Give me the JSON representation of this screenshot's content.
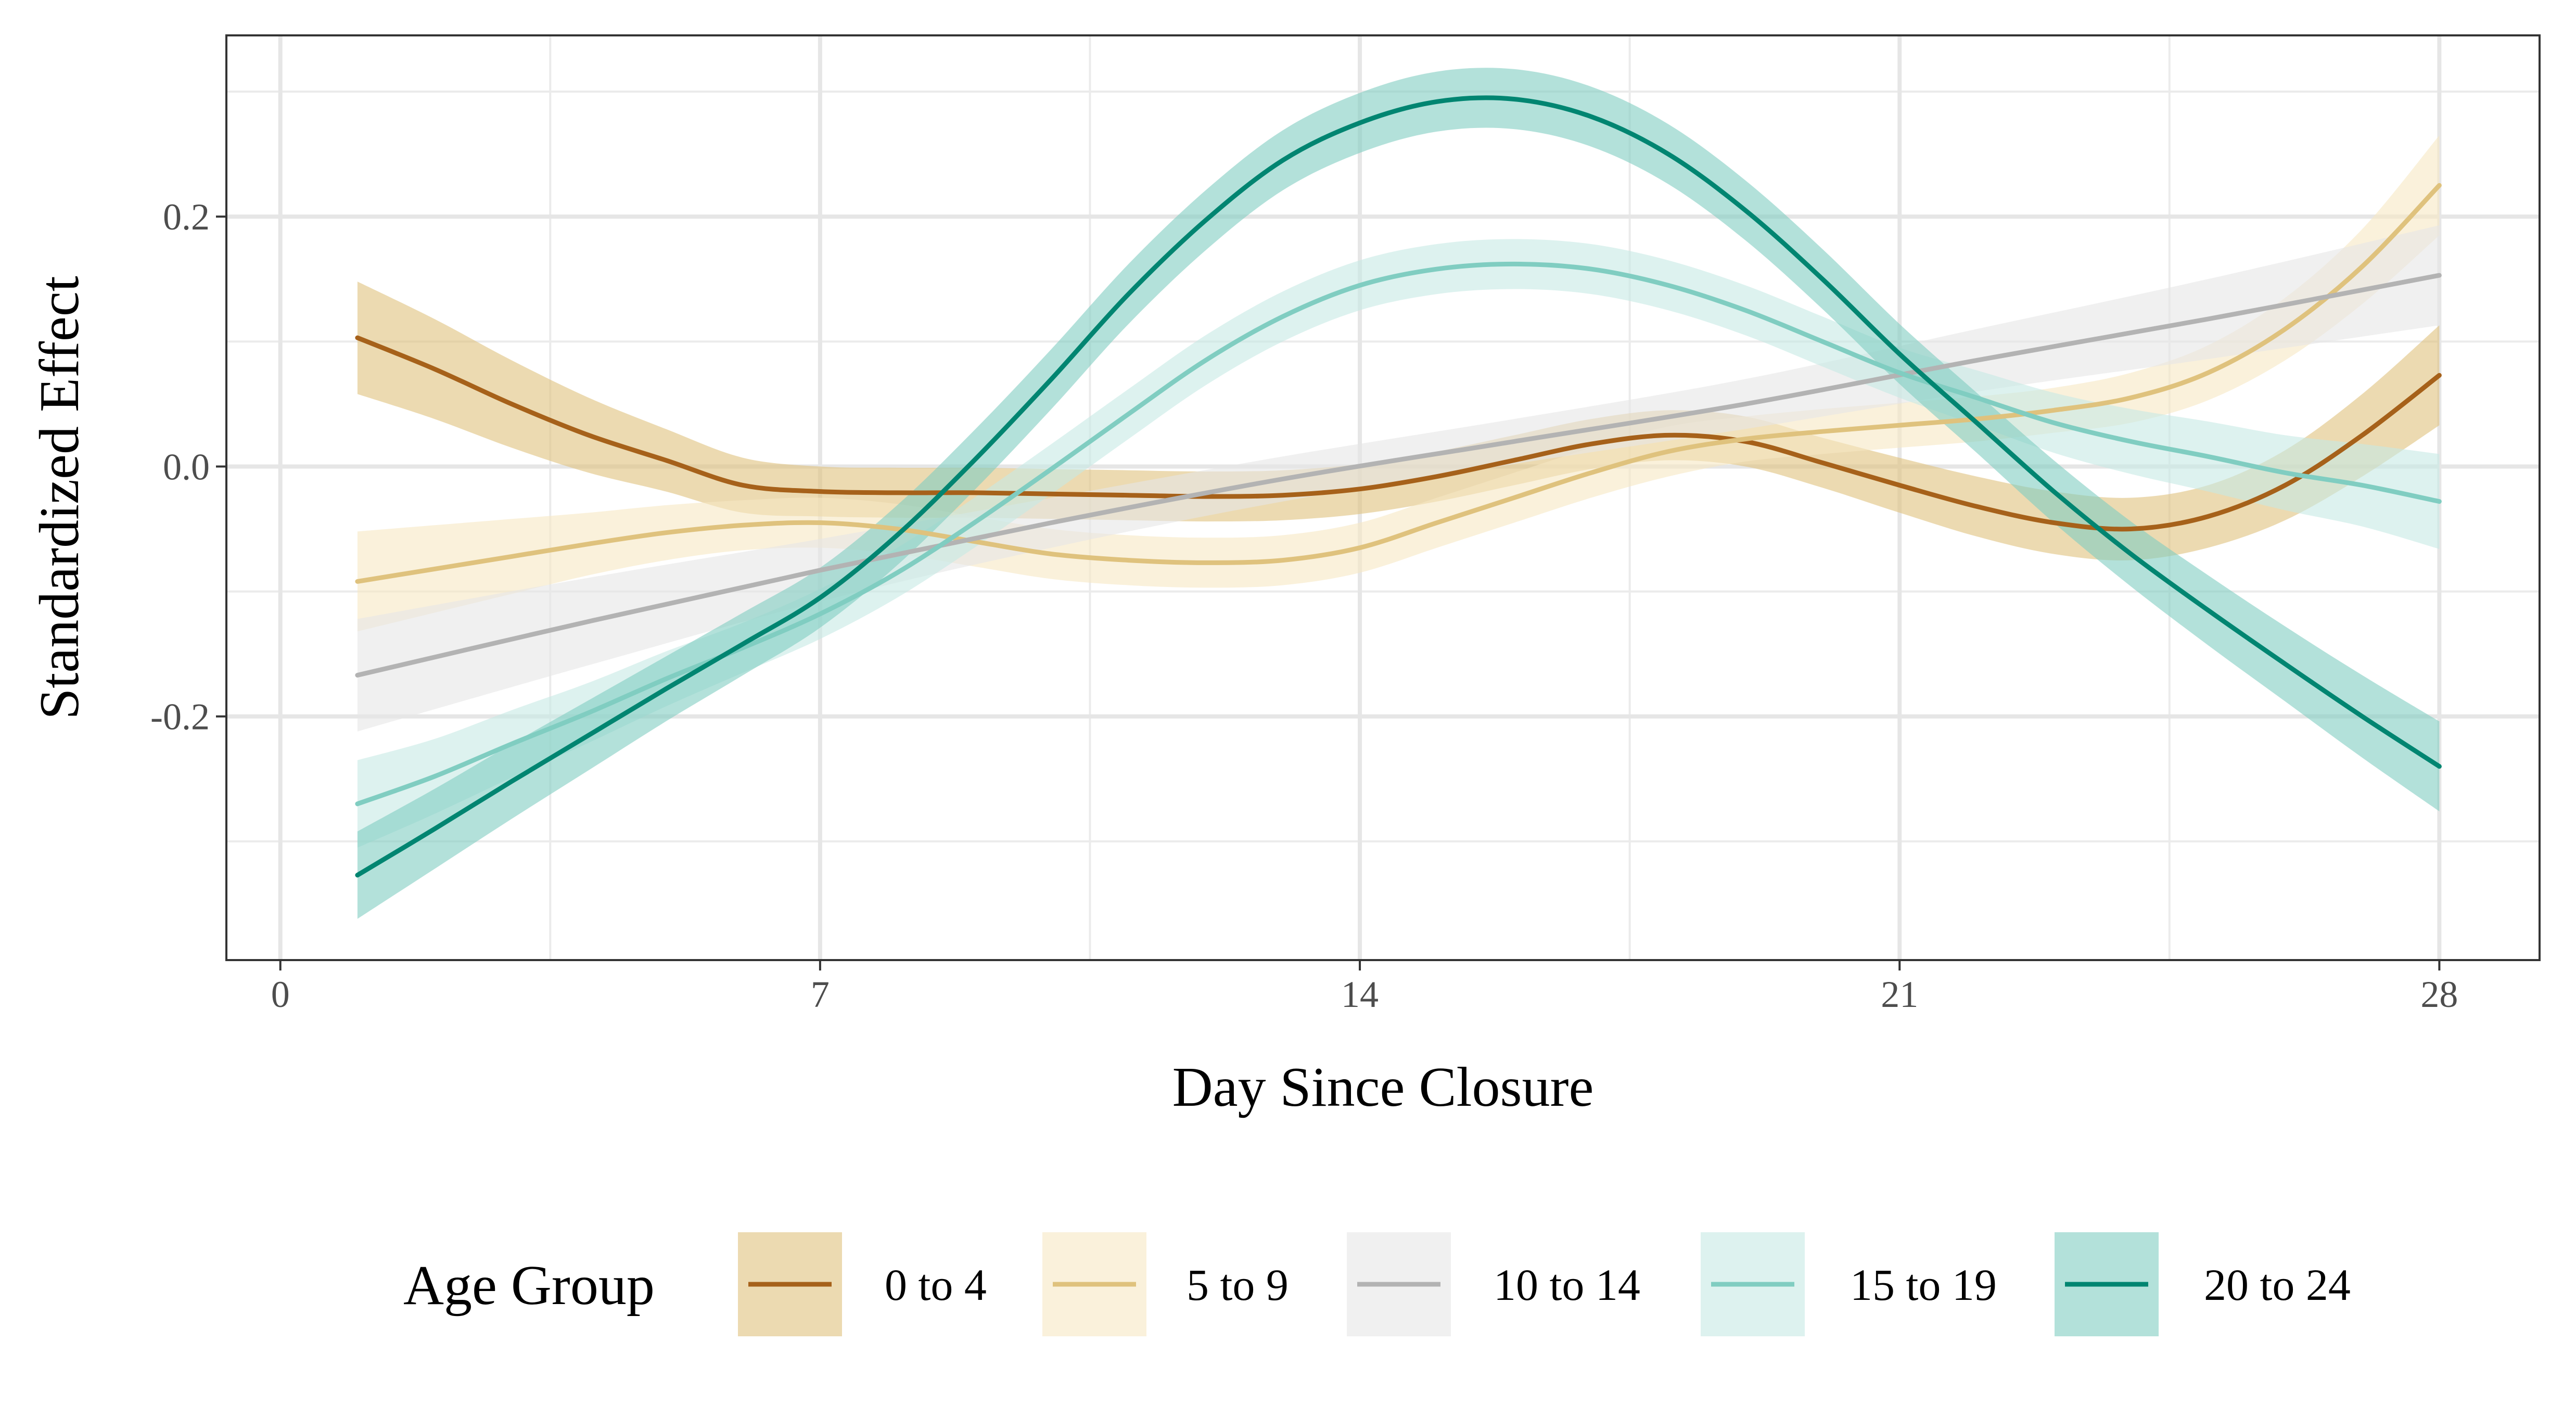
{
  "chart_data": {
    "type": "line",
    "xlabel": "Day Since Closure",
    "ylabel": "Standardized Effect",
    "xlim": [
      -0.7,
      29.3
    ],
    "ylim": [
      -0.395,
      0.345
    ],
    "x_ticks": [
      0,
      7,
      14,
      21,
      28
    ],
    "x_tick_labels": [
      "0",
      "7",
      "14",
      "21",
      "28"
    ],
    "x_minor_ticks": [
      3.5,
      10.5,
      17.5,
      24.5
    ],
    "y_ticks": [
      -0.2,
      0.0,
      0.2
    ],
    "y_tick_labels": [
      "-0.2",
      "0.0",
      "0.2"
    ],
    "y_minor_ticks": [
      -0.3,
      -0.1,
      0.1,
      0.3
    ],
    "grid": true,
    "legend": {
      "title": "Age Group",
      "position": "bottom"
    },
    "series": [
      {
        "name": "0 to 4",
        "color": "#A6611A",
        "fill": "#DFC27D",
        "points": [
          [
            1,
            0.103
          ],
          [
            2,
            0.078
          ],
          [
            3,
            0.05
          ],
          [
            4,
            0.025
          ],
          [
            5,
            0.005
          ],
          [
            6,
            -0.015
          ],
          [
            7,
            -0.02
          ],
          [
            8,
            -0.021
          ],
          [
            9,
            -0.021
          ],
          [
            10,
            -0.022
          ],
          [
            11,
            -0.023
          ],
          [
            12,
            -0.024
          ],
          [
            13,
            -0.023
          ],
          [
            14,
            -0.018
          ],
          [
            15,
            -0.008
          ],
          [
            16,
            0.005
          ],
          [
            17,
            0.018
          ],
          [
            18,
            0.025
          ],
          [
            19,
            0.02
          ],
          [
            20,
            0.003
          ],
          [
            21,
            -0.015
          ],
          [
            22,
            -0.032
          ],
          [
            23,
            -0.045
          ],
          [
            24,
            -0.05
          ],
          [
            25,
            -0.04
          ],
          [
            26,
            -0.015
          ],
          [
            27,
            0.025
          ],
          [
            28,
            0.073
          ]
        ],
        "ci_width": [
          0.045,
          0.04,
          0.035,
          0.03,
          0.025,
          0.022,
          0.02,
          0.02,
          0.02,
          0.02,
          0.02,
          0.02,
          0.02,
          0.02,
          0.02,
          0.02,
          0.02,
          0.02,
          0.02,
          0.02,
          0.022,
          0.024,
          0.025,
          0.025,
          0.025,
          0.028,
          0.033,
          0.04
        ]
      },
      {
        "name": "5 to 9",
        "color": "#DFC27D",
        "fill": "#F6E8C3",
        "points": [
          [
            1,
            -0.092
          ],
          [
            2,
            -0.082
          ],
          [
            3,
            -0.072
          ],
          [
            4,
            -0.062
          ],
          [
            5,
            -0.053
          ],
          [
            6,
            -0.047
          ],
          [
            7,
            -0.045
          ],
          [
            8,
            -0.05
          ],
          [
            9,
            -0.06
          ],
          [
            10,
            -0.07
          ],
          [
            11,
            -0.075
          ],
          [
            12,
            -0.077
          ],
          [
            13,
            -0.075
          ],
          [
            14,
            -0.065
          ],
          [
            15,
            -0.045
          ],
          [
            16,
            -0.025
          ],
          [
            17,
            -0.005
          ],
          [
            18,
            0.012
          ],
          [
            19,
            0.022
          ],
          [
            20,
            0.028
          ],
          [
            21,
            0.033
          ],
          [
            22,
            0.038
          ],
          [
            23,
            0.045
          ],
          [
            24,
            0.055
          ],
          [
            25,
            0.075
          ],
          [
            26,
            0.11
          ],
          [
            27,
            0.16
          ],
          [
            28,
            0.225
          ]
        ],
        "ci_width": [
          0.04,
          0.035,
          0.03,
          0.025,
          0.022,
          0.02,
          0.02,
          0.02,
          0.02,
          0.02,
          0.02,
          0.02,
          0.02,
          0.02,
          0.02,
          0.02,
          0.02,
          0.02,
          0.018,
          0.018,
          0.018,
          0.018,
          0.018,
          0.02,
          0.022,
          0.025,
          0.03,
          0.04
        ]
      },
      {
        "name": "10 to 14",
        "color": "#B3B3B3",
        "fill": "#E6E6E6",
        "points": [
          [
            1,
            -0.167
          ],
          [
            4,
            -0.124
          ],
          [
            7,
            -0.083
          ],
          [
            10,
            -0.045
          ],
          [
            13,
            -0.01
          ],
          [
            16,
            0.02
          ],
          [
            19,
            0.05
          ],
          [
            22,
            0.085
          ],
          [
            25,
            0.118
          ],
          [
            28,
            0.153
          ]
        ],
        "ci_width": [
          0.045,
          0.035,
          0.025,
          0.02,
          0.018,
          0.018,
          0.02,
          0.025,
          0.032,
          0.04
        ]
      },
      {
        "name": "15 to 19",
        "color": "#80CDC1",
        "fill": "#C7EAE5",
        "points": [
          [
            1,
            -0.27
          ],
          [
            2,
            -0.248
          ],
          [
            3,
            -0.222
          ],
          [
            4,
            -0.197
          ],
          [
            5,
            -0.17
          ],
          [
            6,
            -0.145
          ],
          [
            7,
            -0.118
          ],
          [
            8,
            -0.085
          ],
          [
            9,
            -0.045
          ],
          [
            10,
            -0.002
          ],
          [
            11,
            0.042
          ],
          [
            12,
            0.085
          ],
          [
            13,
            0.12
          ],
          [
            14,
            0.145
          ],
          [
            15,
            0.158
          ],
          [
            16,
            0.162
          ],
          [
            17,
            0.158
          ],
          [
            18,
            0.145
          ],
          [
            19,
            0.125
          ],
          [
            20,
            0.1
          ],
          [
            21,
            0.075
          ],
          [
            22,
            0.055
          ],
          [
            23,
            0.035
          ],
          [
            24,
            0.02
          ],
          [
            25,
            0.008
          ],
          [
            26,
            -0.005
          ],
          [
            27,
            -0.015
          ],
          [
            28,
            -0.028
          ]
        ],
        "ci_width": [
          0.035,
          0.03,
          0.027,
          0.024,
          0.022,
          0.02,
          0.02,
          0.02,
          0.02,
          0.02,
          0.02,
          0.02,
          0.02,
          0.02,
          0.02,
          0.02,
          0.02,
          0.02,
          0.02,
          0.02,
          0.02,
          0.022,
          0.024,
          0.026,
          0.028,
          0.03,
          0.033,
          0.038
        ]
      },
      {
        "name": "20 to 24",
        "color": "#018571",
        "fill": "#80CDC1",
        "points": [
          [
            1,
            -0.327
          ],
          [
            2,
            -0.29
          ],
          [
            3,
            -0.252
          ],
          [
            4,
            -0.215
          ],
          [
            5,
            -0.178
          ],
          [
            6,
            -0.142
          ],
          [
            7,
            -0.105
          ],
          [
            8,
            -0.055
          ],
          [
            9,
            0.005
          ],
          [
            10,
            0.07
          ],
          [
            11,
            0.138
          ],
          [
            12,
            0.197
          ],
          [
            13,
            0.245
          ],
          [
            14,
            0.275
          ],
          [
            15,
            0.292
          ],
          [
            16,
            0.294
          ],
          [
            17,
            0.28
          ],
          [
            18,
            0.25
          ],
          [
            19,
            0.205
          ],
          [
            20,
            0.15
          ],
          [
            21,
            0.09
          ],
          [
            22,
            0.035
          ],
          [
            23,
            -0.02
          ],
          [
            24,
            -0.07
          ],
          [
            25,
            -0.115
          ],
          [
            26,
            -0.158
          ],
          [
            27,
            -0.2
          ],
          [
            28,
            -0.24
          ]
        ],
        "ci_width": [
          0.035,
          0.032,
          0.03,
          0.028,
          0.026,
          0.025,
          0.024,
          0.024,
          0.024,
          0.024,
          0.024,
          0.024,
          0.024,
          0.024,
          0.024,
          0.024,
          0.024,
          0.024,
          0.024,
          0.024,
          0.024,
          0.024,
          0.025,
          0.026,
          0.028,
          0.03,
          0.033,
          0.036
        ]
      }
    ]
  }
}
